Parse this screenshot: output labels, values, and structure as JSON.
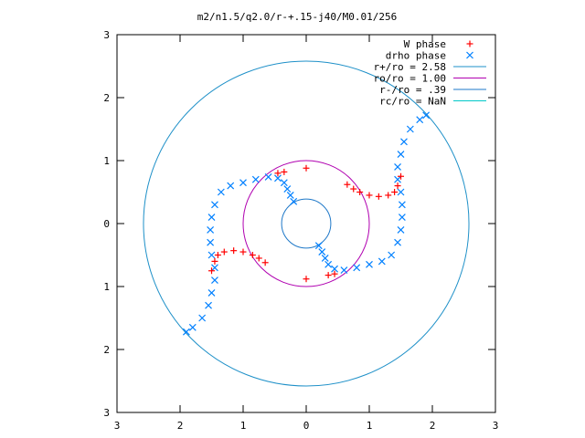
{
  "title": "m2/n1.5/q2.0/r-+.15-j40/M0.01/256",
  "axes": {
    "x_ticks": [
      "3",
      "2",
      "1",
      "0",
      "1",
      "2",
      "3"
    ],
    "y_ticks": [
      "3",
      "2",
      "1",
      "0",
      "1",
      "2",
      "3"
    ]
  },
  "legend": {
    "entries": [
      {
        "label": "W phase",
        "marker": "plus",
        "color": "#ff0000"
      },
      {
        "label": "drho phase",
        "marker": "cross",
        "color": "#0080ff"
      },
      {
        "label": "r+/ro = 2.58",
        "marker": "line",
        "color": "#1e90c8"
      },
      {
        "label": "ro/ro = 1.00",
        "marker": "line",
        "color": "#b000b0"
      },
      {
        "label": "r-/ro = .39",
        "marker": "line",
        "color": "#1e78c8"
      },
      {
        "label": "rc/ro = NaN",
        "marker": "line",
        "color": "#00c8c8"
      }
    ]
  },
  "chart_data": {
    "type": "scatter",
    "title": "m2/n1.5/q2.0/r-+.15-j40/M0.01/256",
    "xlabel": "",
    "ylabel": "",
    "xlim": [
      -3,
      3
    ],
    "ylim": [
      -3,
      3
    ],
    "x_tick_labels": [
      "3",
      "2",
      "1",
      "0",
      "1",
      "2",
      "3"
    ],
    "y_tick_labels": [
      "3",
      "2",
      "1",
      "0",
      "1",
      "2",
      "3"
    ],
    "grid": false,
    "legend_position": "top-right",
    "circles": [
      {
        "name": "r+/ro = 2.58",
        "radius": 2.58,
        "color": "#1e90c8"
      },
      {
        "name": "ro/ro = 1.00",
        "radius": 1.0,
        "color": "#b000b0"
      },
      {
        "name": "r-/ro = .39",
        "radius": 0.39,
        "color": "#1e78c8"
      }
    ],
    "series": [
      {
        "name": "drho phase",
        "marker": "cross",
        "color": "#0080ff",
        "points": [
          [
            -0.2,
            0.35
          ],
          [
            -0.25,
            0.45
          ],
          [
            -0.3,
            0.55
          ],
          [
            -0.35,
            0.65
          ],
          [
            -0.45,
            0.72
          ],
          [
            -0.6,
            0.74
          ],
          [
            -0.8,
            0.7
          ],
          [
            -1.0,
            0.65
          ],
          [
            -1.2,
            0.6
          ],
          [
            -1.35,
            0.5
          ],
          [
            -1.45,
            0.3
          ],
          [
            -1.5,
            0.1
          ],
          [
            -1.52,
            -0.1
          ],
          [
            -1.52,
            -0.3
          ],
          [
            -1.5,
            -0.5
          ],
          [
            -1.45,
            -0.7
          ],
          [
            -1.45,
            -0.9
          ],
          [
            -1.5,
            -1.1
          ],
          [
            -1.55,
            -1.3
          ],
          [
            -1.65,
            -1.5
          ],
          [
            -1.8,
            -1.65
          ],
          [
            -1.9,
            -1.72
          ],
          [
            0.2,
            -0.35
          ],
          [
            0.25,
            -0.45
          ],
          [
            0.3,
            -0.55
          ],
          [
            0.35,
            -0.65
          ],
          [
            0.45,
            -0.72
          ],
          [
            0.6,
            -0.74
          ],
          [
            0.8,
            -0.7
          ],
          [
            1.0,
            -0.65
          ],
          [
            1.2,
            -0.6
          ],
          [
            1.35,
            -0.5
          ],
          [
            1.45,
            -0.3
          ],
          [
            1.5,
            -0.1
          ],
          [
            1.52,
            0.1
          ],
          [
            1.52,
            0.3
          ],
          [
            1.5,
            0.5
          ],
          [
            1.45,
            0.7
          ],
          [
            1.45,
            0.9
          ],
          [
            1.5,
            1.1
          ],
          [
            1.55,
            1.3
          ],
          [
            1.65,
            1.5
          ],
          [
            1.8,
            1.65
          ],
          [
            1.9,
            1.72
          ]
        ]
      },
      {
        "name": "W phase",
        "marker": "plus",
        "color": "#ff0000",
        "points": [
          [
            -1.5,
            -0.75
          ],
          [
            -1.45,
            -0.6
          ],
          [
            -1.4,
            -0.5
          ],
          [
            -1.3,
            -0.45
          ],
          [
            -1.15,
            -0.43
          ],
          [
            -1.0,
            -0.45
          ],
          [
            -0.85,
            -0.5
          ],
          [
            -0.75,
            -0.55
          ],
          [
            -0.65,
            -0.62
          ],
          [
            1.5,
            0.75
          ],
          [
            1.45,
            0.6
          ],
          [
            1.4,
            0.5
          ],
          [
            1.3,
            0.45
          ],
          [
            1.15,
            0.43
          ],
          [
            1.0,
            0.45
          ],
          [
            0.85,
            0.5
          ],
          [
            0.75,
            0.55
          ],
          [
            0.65,
            0.62
          ],
          [
            -0.45,
            0.8
          ],
          [
            -0.35,
            0.82
          ],
          [
            0.0,
            0.88
          ],
          [
            0.0,
            -0.88
          ],
          [
            0.35,
            -0.82
          ],
          [
            0.45,
            -0.8
          ]
        ]
      }
    ]
  }
}
